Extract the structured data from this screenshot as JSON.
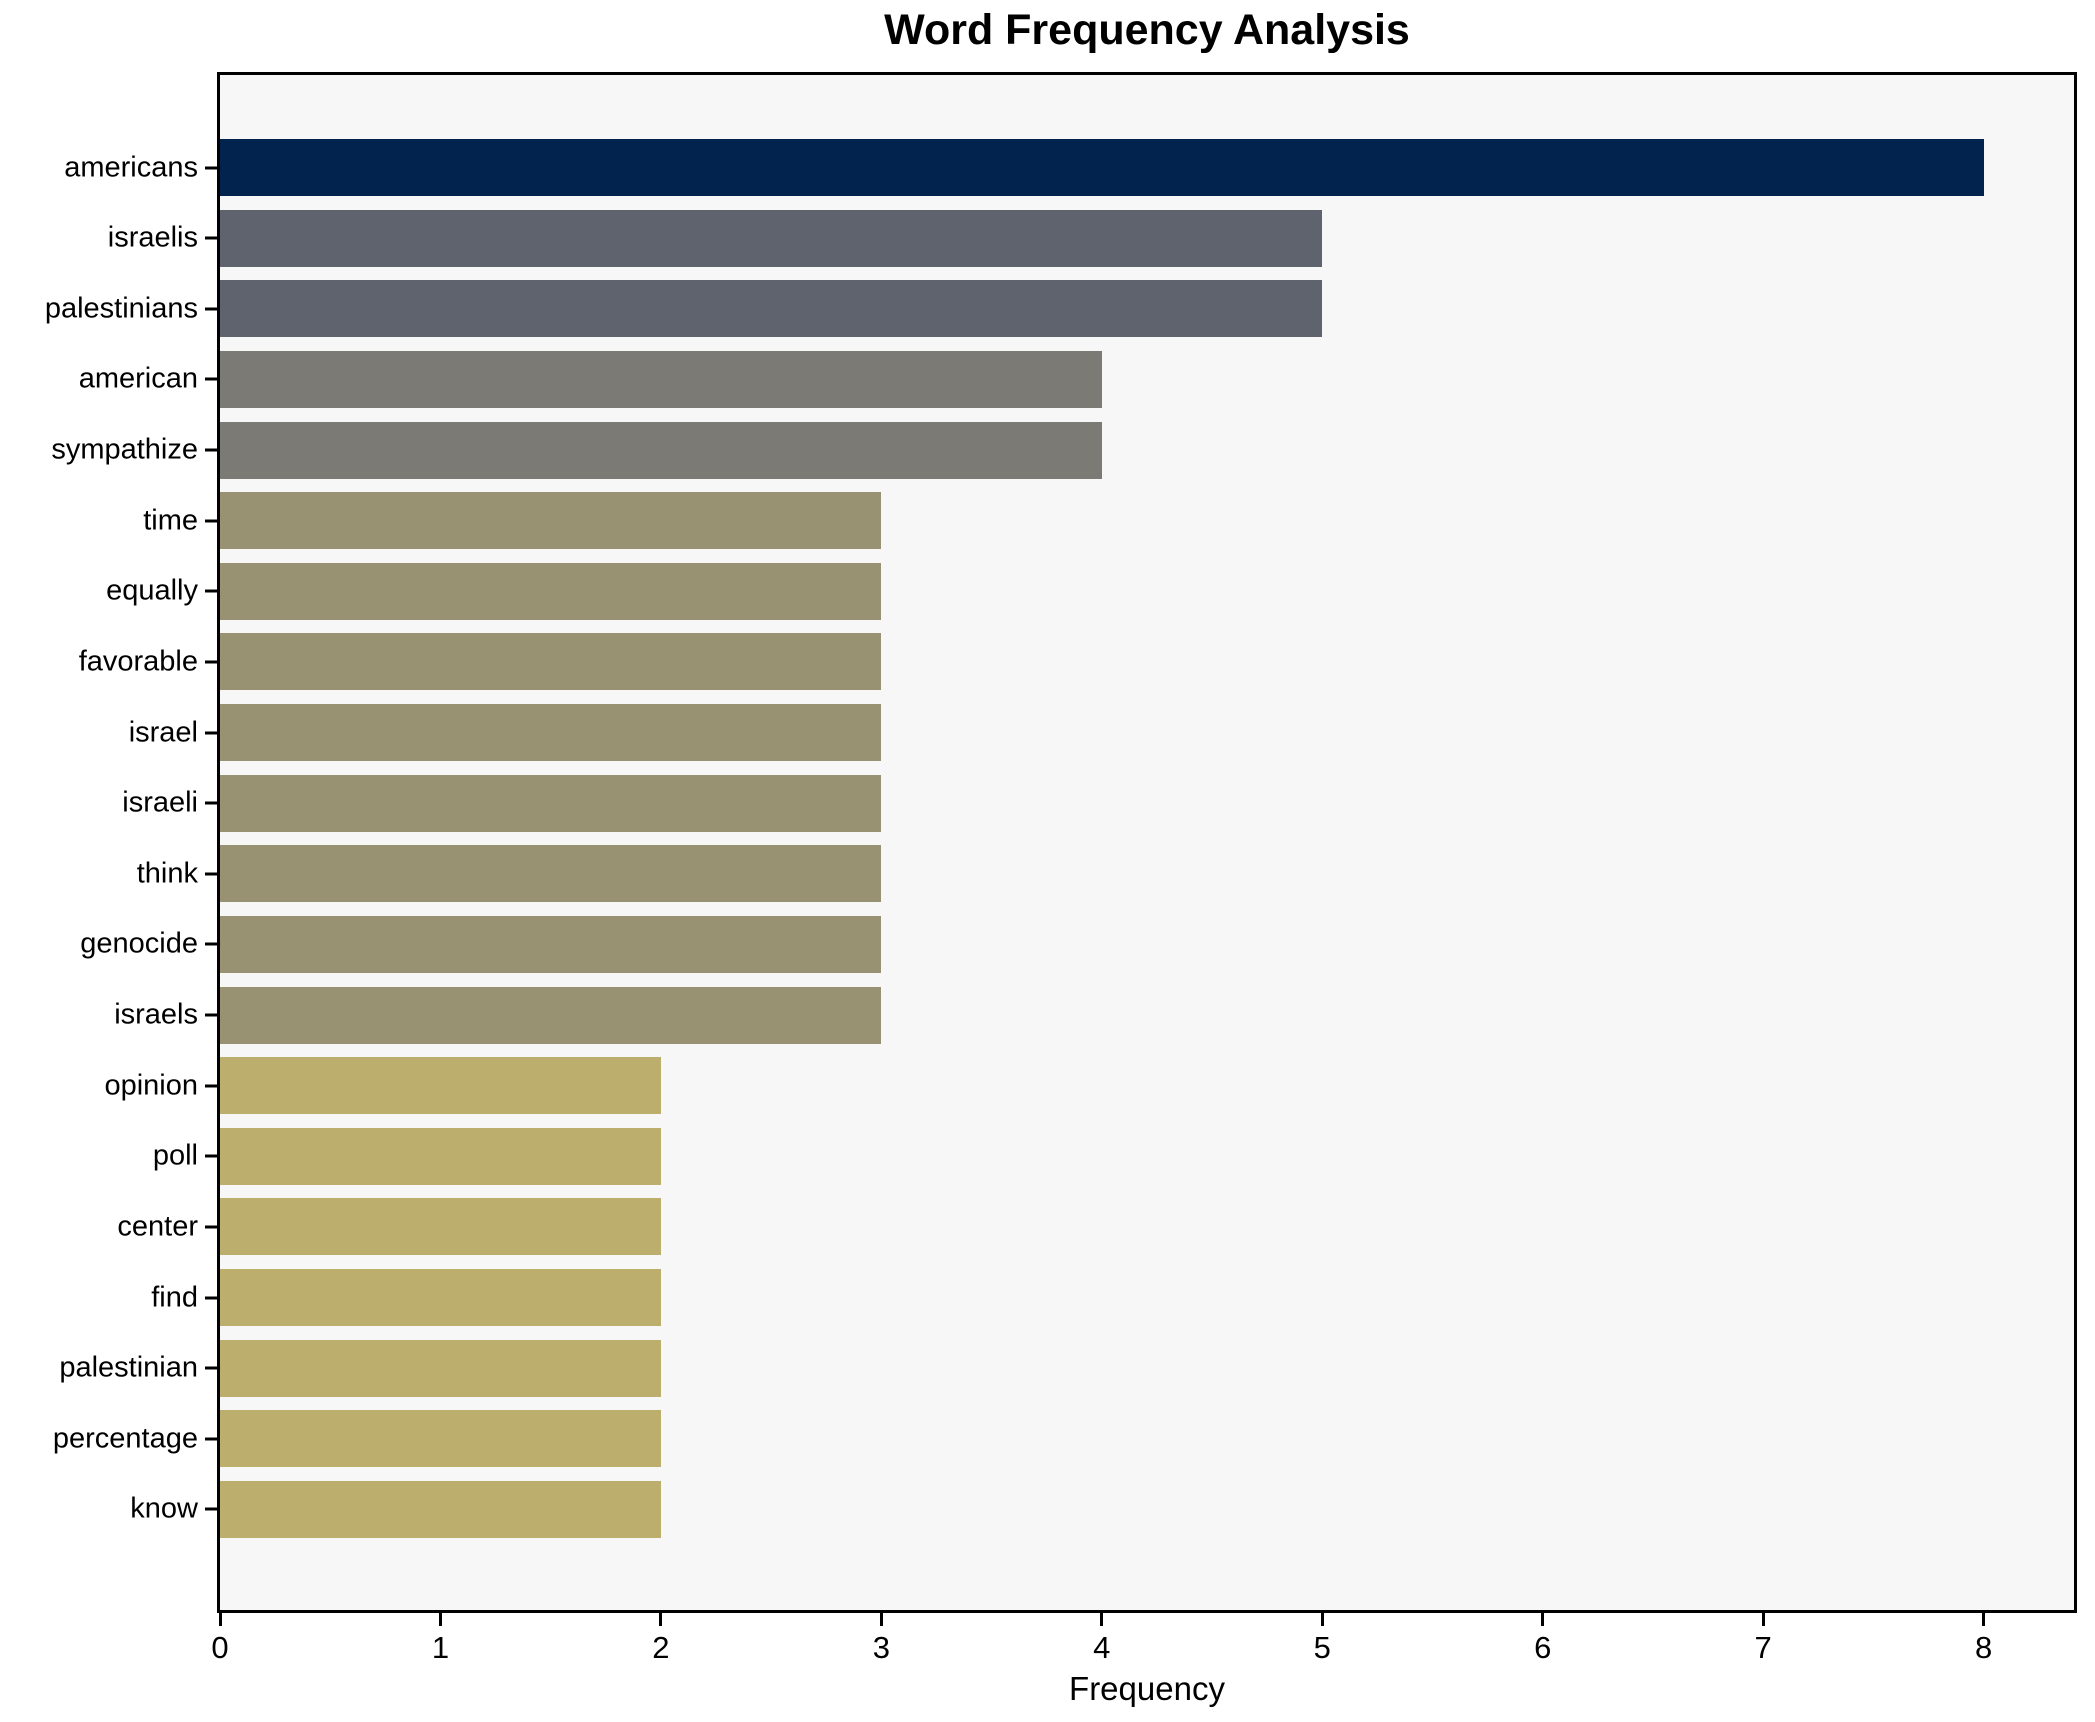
{
  "chart_data": {
    "type": "bar",
    "orientation": "horizontal",
    "title": "Word Frequency Analysis",
    "xlabel": "Frequency",
    "ylabel": "",
    "categories": [
      "americans",
      "israelis",
      "palestinians",
      "american",
      "sympathize",
      "time",
      "equally",
      "favorable",
      "israel",
      "israeli",
      "think",
      "genocide",
      "israels",
      "opinion",
      "poll",
      "center",
      "find",
      "palestinian",
      "percentage",
      "know"
    ],
    "values": [
      8,
      5,
      5,
      4,
      4,
      3,
      3,
      3,
      3,
      3,
      3,
      3,
      3,
      2,
      2,
      2,
      2,
      2,
      2,
      2
    ],
    "bar_colors": [
      "#02234d",
      "#5e636e",
      "#5e636e",
      "#7b7a74",
      "#7b7a74",
      "#989172",
      "#989172",
      "#989172",
      "#989172",
      "#989172",
      "#989172",
      "#989172",
      "#989172",
      "#bcae6c",
      "#bcae6c",
      "#bcae6c",
      "#bcae6c",
      "#bcae6c",
      "#bcae6c",
      "#bcae6c"
    ],
    "x_ticks": [
      0,
      1,
      2,
      3,
      4,
      5,
      6,
      7,
      8
    ],
    "xlim": [
      0,
      8.41
    ],
    "grid": false,
    "legend": null,
    "colors": {
      "plot_background": "#f7f7f7",
      "page_background": "#ffffff",
      "axis_and_text": "#000000"
    }
  }
}
